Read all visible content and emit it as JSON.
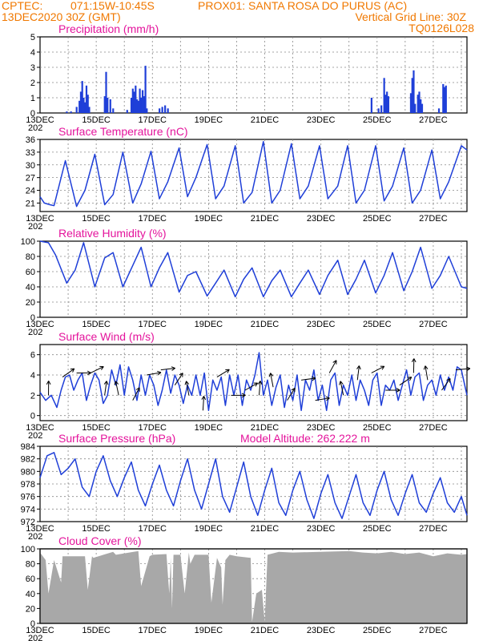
{
  "header": {
    "source": "CPTEC:",
    "coords": "071:15W-10:45S",
    "station": "PROX01: SANTA ROSA DO PURUS (AC)",
    "run": "13DEC2020 30Z (GMT)",
    "grid_note": "Vertical Grid Line: 30Z",
    "code": "TQ0126L028"
  },
  "colors": {
    "header": "#f07800",
    "title": "#e4149c",
    "line": "#1f3fd8",
    "bar": "#1f3fd8",
    "cloud": "#a8a8a8",
    "arrow": "#000000"
  },
  "chart_data": [
    {
      "type": "bar",
      "title": "Precipitation (mm/h)",
      "ylim": [
        0,
        5
      ],
      "yticks": [
        "0",
        "1",
        "2",
        "3",
        "4",
        "5"
      ],
      "xlabels": [
        "13DEC",
        "15DEC",
        "17DEC",
        "19DEC",
        "21DEC",
        "23DEC",
        "25DEC",
        "27DEC"
      ],
      "x_range_days": [
        13,
        28.2
      ],
      "bars": [
        {
          "x": 13.95,
          "y": 0.1
        },
        {
          "x": 14.1,
          "y": 0.1
        },
        {
          "x": 14.3,
          "y": 0.4
        },
        {
          "x": 14.4,
          "y": 0.8
        },
        {
          "x": 14.45,
          "y": 1.4
        },
        {
          "x": 14.5,
          "y": 2.1
        },
        {
          "x": 14.55,
          "y": 1.0
        },
        {
          "x": 14.6,
          "y": 0.7
        },
        {
          "x": 14.65,
          "y": 1.8
        },
        {
          "x": 14.7,
          "y": 1.2
        },
        {
          "x": 14.75,
          "y": 0.4
        },
        {
          "x": 15.3,
          "y": 1.1
        },
        {
          "x": 15.35,
          "y": 2.7
        },
        {
          "x": 15.4,
          "y": 1.0
        },
        {
          "x": 15.5,
          "y": 0.9
        },
        {
          "x": 15.6,
          "y": 0.3
        },
        {
          "x": 16.1,
          "y": 0.2
        },
        {
          "x": 16.25,
          "y": 1.0
        },
        {
          "x": 16.3,
          "y": 1.6
        },
        {
          "x": 16.35,
          "y": 1.4
        },
        {
          "x": 16.4,
          "y": 1.8
        },
        {
          "x": 16.45,
          "y": 0.9
        },
        {
          "x": 16.5,
          "y": 0.8
        },
        {
          "x": 16.55,
          "y": 1.6
        },
        {
          "x": 16.6,
          "y": 1.0
        },
        {
          "x": 16.65,
          "y": 1.5
        },
        {
          "x": 16.7,
          "y": 1.1
        },
        {
          "x": 16.75,
          "y": 3.1
        },
        {
          "x": 16.8,
          "y": 0.3
        },
        {
          "x": 17.25,
          "y": 0.3
        },
        {
          "x": 17.35,
          "y": 0.4
        },
        {
          "x": 17.45,
          "y": 0.5
        },
        {
          "x": 17.55,
          "y": 0.3
        },
        {
          "x": 24.8,
          "y": 1.0
        },
        {
          "x": 25.05,
          "y": 0.3
        },
        {
          "x": 25.15,
          "y": 0.5
        },
        {
          "x": 25.25,
          "y": 2.3
        },
        {
          "x": 25.3,
          "y": 1.2
        },
        {
          "x": 25.35,
          "y": 1.4
        },
        {
          "x": 25.4,
          "y": 1.1
        },
        {
          "x": 26.2,
          "y": 1.3
        },
        {
          "x": 26.25,
          "y": 2.3
        },
        {
          "x": 26.3,
          "y": 2.8
        },
        {
          "x": 26.35,
          "y": 0.6
        },
        {
          "x": 26.45,
          "y": 1.2
        },
        {
          "x": 26.5,
          "y": 1.4
        },
        {
          "x": 26.55,
          "y": 0.9
        },
        {
          "x": 26.6,
          "y": 0.6
        },
        {
          "x": 27.2,
          "y": 0.3
        },
        {
          "x": 27.35,
          "y": 1.9
        },
        {
          "x": 27.4,
          "y": 1.7
        },
        {
          "x": 27.45,
          "y": 1.8
        }
      ]
    },
    {
      "type": "line",
      "title": "Surface Temperature (nC)",
      "ylim": [
        19,
        36
      ],
      "yticks": [
        "21",
        "24",
        "27",
        "30",
        "33",
        "36"
      ],
      "xlabels": [
        "13DEC",
        "15DEC",
        "17DEC",
        "19DEC",
        "21DEC",
        "23DEC",
        "25DEC",
        "27DEC"
      ],
      "x_range_days": [
        13,
        28.2
      ],
      "x": [
        13.0,
        13.15,
        13.35,
        13.5,
        13.9,
        14.3,
        14.6,
        14.95,
        15.3,
        15.6,
        15.95,
        16.3,
        16.6,
        16.95,
        17.25,
        17.55,
        17.95,
        18.25,
        18.55,
        18.95,
        19.25,
        19.55,
        19.95,
        20.25,
        20.55,
        20.95,
        21.25,
        21.55,
        21.95,
        22.25,
        22.55,
        22.95,
        23.25,
        23.6,
        23.95,
        24.25,
        24.55,
        24.95,
        25.25,
        25.55,
        25.95,
        26.25,
        26.55,
        26.95,
        27.25,
        27.55,
        28.0,
        28.2
      ],
      "y": [
        22.5,
        21.0,
        20.6,
        20.4,
        31.0,
        20.2,
        24.0,
        32.5,
        20.6,
        23.0,
        33.0,
        21.0,
        25.5,
        33.2,
        22.0,
        26.0,
        34.0,
        22.5,
        27.0,
        34.8,
        22.0,
        25.0,
        34.5,
        21.0,
        23.5,
        35.5,
        21.0,
        24.0,
        35.0,
        22.0,
        25.0,
        34.5,
        22.0,
        25.0,
        34.5,
        21.0,
        24.0,
        34.5,
        21.5,
        25.0,
        34.0,
        21.0,
        24.0,
        33.5,
        22.0,
        26.0,
        34.5,
        33.5
      ]
    },
    {
      "type": "line",
      "title": "Relative Humidity (%)",
      "ylim": [
        0,
        100
      ],
      "yticks": [
        "0",
        "20",
        "40",
        "60",
        "80",
        "100"
      ],
      "xlabels": [
        "13DEC",
        "15DEC",
        "17DEC",
        "19DEC",
        "21DEC",
        "23DEC",
        "25DEC",
        "27DEC"
      ],
      "x_range_days": [
        13,
        28.2
      ],
      "x": [
        13.0,
        13.3,
        13.55,
        13.95,
        14.25,
        14.55,
        14.95,
        15.3,
        15.6,
        15.95,
        16.3,
        16.6,
        16.95,
        17.25,
        17.55,
        17.95,
        18.25,
        18.55,
        18.95,
        19.25,
        19.55,
        19.95,
        20.25,
        20.55,
        20.95,
        21.25,
        21.55,
        21.95,
        22.25,
        22.55,
        22.95,
        23.25,
        23.6,
        23.95,
        24.25,
        24.55,
        24.95,
        25.25,
        25.55,
        25.95,
        26.25,
        26.55,
        26.95,
        27.25,
        27.55,
        28.0,
        28.2
      ],
      "y": [
        100,
        98,
        82,
        45,
        62,
        98,
        40,
        78,
        85,
        40,
        68,
        92,
        40,
        65,
        85,
        33,
        55,
        60,
        28,
        45,
        62,
        27,
        50,
        65,
        27,
        48,
        62,
        27,
        45,
        62,
        30,
        55,
        75,
        30,
        50,
        75,
        32,
        55,
        85,
        35,
        60,
        92,
        38,
        55,
        80,
        40,
        38
      ]
    },
    {
      "type": "line",
      "title": "Surface Wind (m/s)",
      "ylim": [
        -0.5,
        7
      ],
      "yticks": [
        "0",
        "2",
        "4",
        "6"
      ],
      "xlabels": [
        "13DEC",
        "15DEC",
        "17DEC",
        "19DEC",
        "21DEC",
        "23DEC",
        "25DEC",
        "27DEC"
      ],
      "x_range_days": [
        13,
        28.2
      ],
      "x": [
        13.0,
        13.2,
        13.4,
        13.6,
        13.75,
        13.9,
        14.05,
        14.2,
        14.35,
        14.5,
        14.65,
        14.8,
        14.95,
        15.1,
        15.25,
        15.4,
        15.55,
        15.7,
        15.85,
        16.0,
        16.15,
        16.3,
        16.45,
        16.6,
        16.75,
        16.9,
        17.05,
        17.2,
        17.35,
        17.5,
        17.65,
        17.8,
        17.95,
        18.1,
        18.25,
        18.4,
        18.55,
        18.7,
        18.85,
        19.0,
        19.15,
        19.3,
        19.45,
        19.6,
        19.75,
        19.9,
        20.05,
        20.2,
        20.35,
        20.5,
        20.65,
        20.8,
        20.95,
        21.1,
        21.25,
        21.4,
        21.55,
        21.7,
        21.85,
        22.0,
        22.15,
        22.3,
        22.45,
        22.6,
        22.75,
        22.9,
        23.05,
        23.2,
        23.35,
        23.5,
        23.65,
        23.8,
        23.95,
        24.1,
        24.25,
        24.4,
        24.55,
        24.7,
        24.85,
        25.0,
        25.15,
        25.3,
        25.45,
        25.6,
        25.75,
        25.9,
        26.05,
        26.2,
        26.35,
        26.5,
        26.65,
        26.8,
        26.95,
        27.1,
        27.25,
        27.4,
        27.55,
        27.7,
        27.85,
        28.0,
        28.2
      ],
      "y": [
        2.3,
        1.5,
        2.0,
        0.8,
        2.5,
        3.8,
        4.0,
        2.5,
        3.5,
        4.2,
        1.5,
        3.0,
        4.2,
        3.5,
        1.2,
        2.0,
        4.5,
        3.0,
        5.0,
        2.0,
        4.8,
        3.5,
        1.5,
        4.0,
        2.0,
        4.0,
        3.0,
        1.0,
        2.5,
        4.5,
        2.2,
        4.0,
        3.0,
        1.2,
        3.0,
        2.0,
        4.0,
        2.0,
        4.2,
        0.5,
        3.5,
        2.5,
        3.8,
        1.0,
        4.0,
        2.0,
        4.0,
        1.0,
        3.5,
        2.5,
        4.0,
        6.2,
        2.0,
        3.5,
        1.0,
        2.8,
        4.0,
        0.8,
        3.0,
        1.5,
        4.0,
        0.5,
        3.5,
        2.5,
        4.5,
        1.5,
        3.0,
        0.5,
        3.5,
        4.2,
        1.0,
        3.0,
        2.0,
        4.0,
        1.5,
        3.5,
        2.5,
        1.0,
        3.5,
        4.2,
        1.0,
        3.0,
        2.5,
        3.5,
        1.5,
        3.0,
        4.5,
        2.0,
        3.8,
        4.2,
        1.5,
        3.0,
        3.5,
        2.0,
        4.0,
        2.5,
        3.8,
        2.5,
        4.8,
        4.5,
        2.0
      ]
    },
    {
      "type": "line",
      "title": "Surface Pressure (hPa)",
      "annotation": "Model Altitude: 262.222 m",
      "ylim": [
        972,
        984
      ],
      "yticks": [
        "972",
        "974",
        "976",
        "978",
        "980",
        "982",
        "984"
      ],
      "xlabels": [
        "13DEC",
        "15DEC",
        "17DEC",
        "19DEC",
        "21DEC",
        "23DEC",
        "25DEC",
        "27DEC"
      ],
      "x_range_days": [
        13,
        28.2
      ],
      "x": [
        13.0,
        13.25,
        13.5,
        13.75,
        14.0,
        14.25,
        14.5,
        14.75,
        15.0,
        15.25,
        15.5,
        15.75,
        16.0,
        16.25,
        16.5,
        16.75,
        17.0,
        17.25,
        17.5,
        17.75,
        18.0,
        18.25,
        18.5,
        18.75,
        19.0,
        19.25,
        19.5,
        19.75,
        20.0,
        20.25,
        20.5,
        20.75,
        21.0,
        21.25,
        21.5,
        21.75,
        22.0,
        22.25,
        22.5,
        22.75,
        23.0,
        23.25,
        23.5,
        23.75,
        24.0,
        24.25,
        24.5,
        24.75,
        25.0,
        25.25,
        25.5,
        25.75,
        26.0,
        26.25,
        26.5,
        26.75,
        27.0,
        27.25,
        27.5,
        27.75,
        28.0,
        28.2
      ],
      "y": [
        979.0,
        982.5,
        983.0,
        979.5,
        980.5,
        982.0,
        977.5,
        976.0,
        980.0,
        982.5,
        978.5,
        976.0,
        979.0,
        981.5,
        977.0,
        974.5,
        978.0,
        981.0,
        977.0,
        974.5,
        978.5,
        982.0,
        977.0,
        974.0,
        978.0,
        982.0,
        976.0,
        973.5,
        977.5,
        981.5,
        976.0,
        973.0,
        977.0,
        980.5,
        975.0,
        973.0,
        977.0,
        980.0,
        975.5,
        972.5,
        976.5,
        979.5,
        975.0,
        972.5,
        976.0,
        979.5,
        975.0,
        973.0,
        977.0,
        980.0,
        975.5,
        973.0,
        976.5,
        979.5,
        975.0,
        973.5,
        976.5,
        979.0,
        975.0,
        973.5,
        976.0,
        973.0
      ]
    },
    {
      "type": "area",
      "title": "Cloud Cover (%)",
      "ylim": [
        0,
        100
      ],
      "yticks": [
        "0",
        "20",
        "40",
        "60",
        "80",
        "100"
      ],
      "xlabels": [
        "13DEC",
        "15DEC",
        "17DEC",
        "19DEC",
        "21DEC",
        "23DEC",
        "25DEC",
        "27DEC"
      ],
      "x_range_days": [
        13,
        28.2
      ],
      "x": [
        13.0,
        13.2,
        13.3,
        13.5,
        13.75,
        13.8,
        14.6,
        14.7,
        14.85,
        14.9,
        15.6,
        15.7,
        16.5,
        16.6,
        16.9,
        17.0,
        17.5,
        17.6,
        17.65,
        17.7,
        17.75,
        18.0,
        18.15,
        18.3,
        18.35,
        18.5,
        19.0,
        19.1,
        19.3,
        19.45,
        19.5,
        19.6,
        19.75,
        20.0,
        20.5,
        20.55,
        20.7,
        20.9,
        21.0,
        21.1,
        21.5,
        22.0,
        24.0,
        24.5,
        25.0,
        25.5,
        26.0,
        26.5,
        27.0,
        27.5,
        28.0,
        28.2
      ],
      "y": [
        95,
        85,
        40,
        85,
        55,
        90,
        90,
        45,
        90,
        88,
        96,
        92,
        97,
        50,
        90,
        92,
        93,
        40,
        88,
        20,
        92,
        92,
        40,
        95,
        80,
        92,
        92,
        28,
        88,
        75,
        25,
        85,
        92,
        90,
        88,
        2,
        40,
        45,
        2,
        92,
        96,
        95,
        97,
        95,
        94,
        96,
        93,
        95,
        90,
        94,
        92,
        93
      ]
    }
  ]
}
